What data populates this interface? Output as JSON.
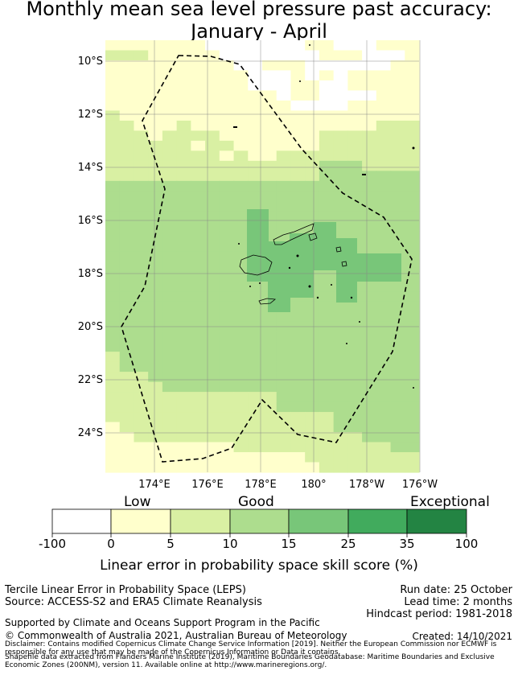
{
  "title": {
    "line1": "Monthly mean sea level pressure past accuracy:",
    "line2": "January - April"
  },
  "map": {
    "lat_labels": [
      "10°S",
      "12°S",
      "14°S",
      "16°S",
      "18°S",
      "20°S",
      "22°S",
      "24°S"
    ],
    "lon_labels": [
      "174°E",
      "176°E",
      "178°E",
      "180°",
      "178°W",
      "176°W"
    ]
  },
  "colorbar": {
    "categories": [
      "Low",
      "Good",
      "Exceptional"
    ],
    "ticks": [
      "-100",
      "0",
      "5",
      "10",
      "15",
      "25",
      "35",
      "100"
    ],
    "colors": [
      "#ffffff",
      "#ffffcc",
      "#d9f0a3",
      "#addd8e",
      "#78c679",
      "#41ab5d",
      "#238443"
    ],
    "label": "Linear error in probability space skill score (%)"
  },
  "info": {
    "method": "Tercile Linear Error in Probability Space (LEPS)",
    "source": "Source: ACCESS-S2 and ERA5 Climate Reanalysis",
    "run_date": "Run date: 25 October",
    "lead_time": "Lead time: 2 months",
    "hindcast": "Hindcast period: 1981-2018",
    "support": "Supported by Climate and Oceans Support Program in the Pacific",
    "copyright": "© Commonwealth of Australia 2021, Australian Bureau of Meteorology",
    "created": "Created: 14/10/2021",
    "disclaimer1": "Disclaimer: Contains modified Copernicus Climate Change Service Information [2019]. Neither the European Commission nor ECMWF is",
    "disclaimer2": "responsible for any use that may be made of the Copernicus Information or Data it contains.",
    "shapefile1": "Shapefile data extracted from Flanders Marine Institute (2019), Maritime Boundaries Geodatabase: Maritime Boundaries and Exclusive",
    "shapefile2": "Economic Zones (200NM), version 11. Available online at http://www.marineregions.org/."
  }
}
